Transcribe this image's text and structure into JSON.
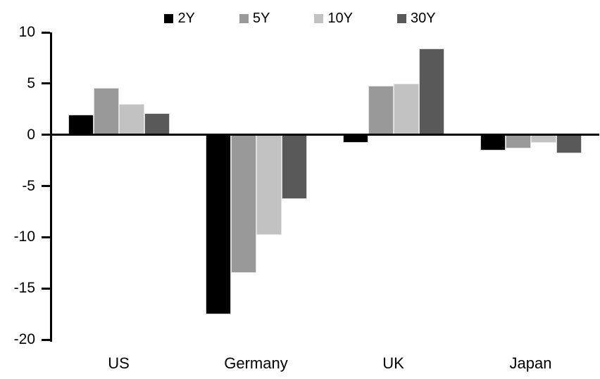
{
  "background_color": "#ffffff",
  "text_color": "#000000",
  "chart_data": {
    "type": "bar",
    "title": "",
    "xlabel": "",
    "ylabel": "",
    "categories": [
      "US",
      "Germany",
      "UK",
      "Japan"
    ],
    "series": [
      {
        "name": "2Y",
        "color": "#000000",
        "values": [
          2.0,
          -17.5,
          -0.8,
          -1.5
        ]
      },
      {
        "name": "5Y",
        "color": "#999999",
        "values": [
          4.6,
          -13.5,
          4.8,
          -1.3
        ]
      },
      {
        "name": "10Y",
        "color": "#c2c2c2",
        "values": [
          3.0,
          -9.8,
          5.0,
          -0.8
        ]
      },
      {
        "name": "30Y",
        "color": "#595959",
        "values": [
          2.1,
          -6.3,
          8.4,
          -1.8
        ]
      }
    ],
    "ylim": [
      -20,
      10
    ],
    "yticks": [
      10,
      5,
      0,
      -5,
      -10,
      -15,
      -20
    ],
    "grid": false,
    "legend_position": "top",
    "axis_color": "#000000"
  }
}
